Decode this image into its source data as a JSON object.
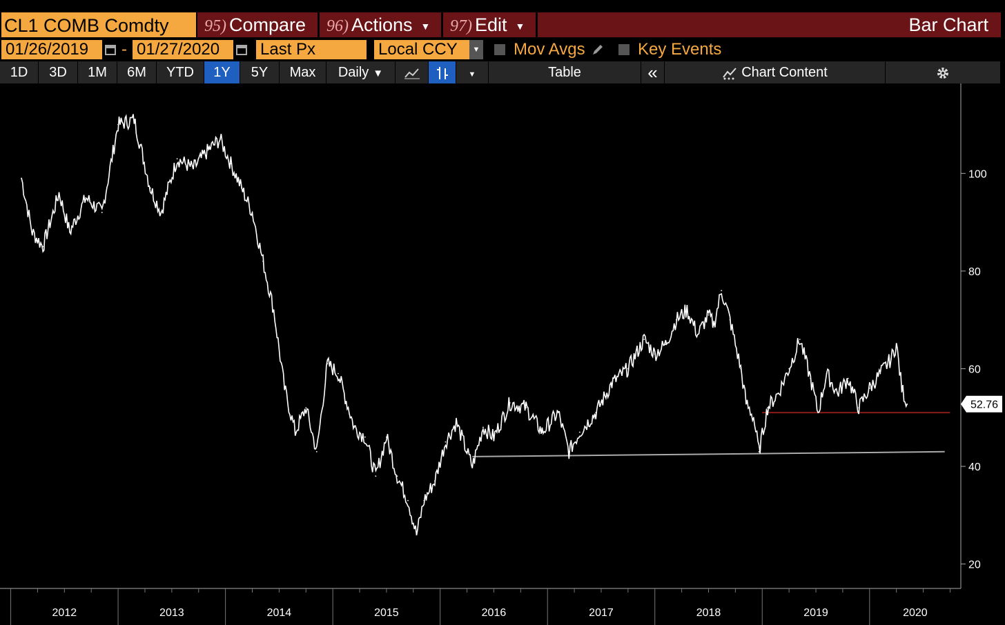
{
  "header": {
    "ticker": "CL1 COMB Comdty",
    "compare": {
      "num": "95)",
      "label": "Compare"
    },
    "actions": {
      "num": "96)",
      "label": "Actions"
    },
    "edit": {
      "num": "97)",
      "label": "Edit"
    },
    "title": "Bar Chart"
  },
  "controls": {
    "start_date": "01/26/2019",
    "separator": "-",
    "end_date": "01/27/2020",
    "field": "Last Px",
    "currency": "Local CCY",
    "mov_avgs": "Mov Avgs",
    "key_events": "Key Events"
  },
  "toolbar": {
    "periods": [
      "1D",
      "3D",
      "1M",
      "6M",
      "YTD",
      "1Y",
      "5Y",
      "Max"
    ],
    "active_period": "1Y",
    "frequency": "Daily",
    "table": "Table",
    "chart_content": "Chart Content"
  },
  "colors": {
    "accent_orange": "#f5a840",
    "menu_red": "#6b1418",
    "active_blue": "#1f5fbf",
    "price_line": "#ffffff",
    "support_red": "#8b1a1a",
    "support_gray": "#aaaaaa"
  },
  "chart_data": {
    "type": "line",
    "title": "",
    "xlabel": "",
    "ylabel": "",
    "x_ticks": [
      "2012",
      "2013",
      "2014",
      "2015",
      "2016",
      "2017",
      "2018",
      "2019",
      "2020"
    ],
    "y_ticks": [
      20,
      40,
      60,
      80,
      100
    ],
    "ylim": [
      15,
      117
    ],
    "last_price_label": "52.76",
    "series": [
      {
        "values": [
          {
            "x": 2012.1,
            "y": 99
          },
          {
            "x": 2012.2,
            "y": 88
          },
          {
            "x": 2012.3,
            "y": 85
          },
          {
            "x": 2012.45,
            "y": 96
          },
          {
            "x": 2012.55,
            "y": 88
          },
          {
            "x": 2012.7,
            "y": 95
          },
          {
            "x": 2012.85,
            "y": 92
          },
          {
            "x": 2013.0,
            "y": 110
          },
          {
            "x": 2013.15,
            "y": 111
          },
          {
            "x": 2013.3,
            "y": 97
          },
          {
            "x": 2013.4,
            "y": 92
          },
          {
            "x": 2013.55,
            "y": 103
          },
          {
            "x": 2013.7,
            "y": 101
          },
          {
            "x": 2013.85,
            "y": 105
          },
          {
            "x": 2013.95,
            "y": 107
          },
          {
            "x": 2014.05,
            "y": 102
          },
          {
            "x": 2014.15,
            "y": 97
          },
          {
            "x": 2014.25,
            "y": 92
          },
          {
            "x": 2014.35,
            "y": 82
          },
          {
            "x": 2014.45,
            "y": 72
          },
          {
            "x": 2014.55,
            "y": 56
          },
          {
            "x": 2014.65,
            "y": 47
          },
          {
            "x": 2014.75,
            "y": 52
          },
          {
            "x": 2014.85,
            "y": 43
          },
          {
            "x": 2014.95,
            "y": 61
          },
          {
            "x": 2015.05,
            "y": 59
          },
          {
            "x": 2015.2,
            "y": 48
          },
          {
            "x": 2015.3,
            "y": 46
          },
          {
            "x": 2015.4,
            "y": 38
          },
          {
            "x": 2015.5,
            "y": 46
          },
          {
            "x": 2015.6,
            "y": 38
          },
          {
            "x": 2015.7,
            "y": 33
          },
          {
            "x": 2015.78,
            "y": 26
          },
          {
            "x": 2015.85,
            "y": 33
          },
          {
            "x": 2015.95,
            "y": 37
          },
          {
            "x": 2016.05,
            "y": 45
          },
          {
            "x": 2016.15,
            "y": 49
          },
          {
            "x": 2016.25,
            "y": 43
          },
          {
            "x": 2016.3,
            "y": 40
          },
          {
            "x": 2016.4,
            "y": 48
          },
          {
            "x": 2016.5,
            "y": 46
          },
          {
            "x": 2016.65,
            "y": 53
          },
          {
            "x": 2016.8,
            "y": 52
          },
          {
            "x": 2016.95,
            "y": 47
          },
          {
            "x": 2017.1,
            "y": 51
          },
          {
            "x": 2017.2,
            "y": 43
          },
          {
            "x": 2017.3,
            "y": 47
          },
          {
            "x": 2017.45,
            "y": 51
          },
          {
            "x": 2017.6,
            "y": 57
          },
          {
            "x": 2017.75,
            "y": 60
          },
          {
            "x": 2017.9,
            "y": 66
          },
          {
            "x": 2018.0,
            "y": 63
          },
          {
            "x": 2018.1,
            "y": 65
          },
          {
            "x": 2018.2,
            "y": 70
          },
          {
            "x": 2018.3,
            "y": 72
          },
          {
            "x": 2018.4,
            "y": 67
          },
          {
            "x": 2018.5,
            "y": 71
          },
          {
            "x": 2018.55,
            "y": 69
          },
          {
            "x": 2018.62,
            "y": 76
          },
          {
            "x": 2018.7,
            "y": 70
          },
          {
            "x": 2018.8,
            "y": 60
          },
          {
            "x": 2018.85,
            "y": 53
          },
          {
            "x": 2018.92,
            "y": 50
          },
          {
            "x": 2018.97,
            "y": 43
          },
          {
            "x": 2019.05,
            "y": 52
          },
          {
            "x": 2019.15,
            "y": 55
          },
          {
            "x": 2019.25,
            "y": 60
          },
          {
            "x": 2019.35,
            "y": 66
          },
          {
            "x": 2019.45,
            "y": 58
          },
          {
            "x": 2019.52,
            "y": 51
          },
          {
            "x": 2019.6,
            "y": 59
          },
          {
            "x": 2019.7,
            "y": 55
          },
          {
            "x": 2019.8,
            "y": 58
          },
          {
            "x": 2019.9,
            "y": 52
          },
          {
            "x": 2020.0,
            "y": 56
          },
          {
            "x": 2020.1,
            "y": 59
          },
          {
            "x": 2020.2,
            "y": 62
          },
          {
            "x": 2020.25,
            "y": 65
          },
          {
            "x": 2020.3,
            "y": 56
          },
          {
            "x": 2020.35,
            "y": 52.76
          }
        ]
      }
    ],
    "trendlines": [
      {
        "x1": 2016.3,
        "y1": 42,
        "x2": 2020.7,
        "y2": 43,
        "color": "gray"
      },
      {
        "x1": 2019.0,
        "y1": 51,
        "x2": 2020.75,
        "y2": 51,
        "color": "red"
      }
    ]
  }
}
